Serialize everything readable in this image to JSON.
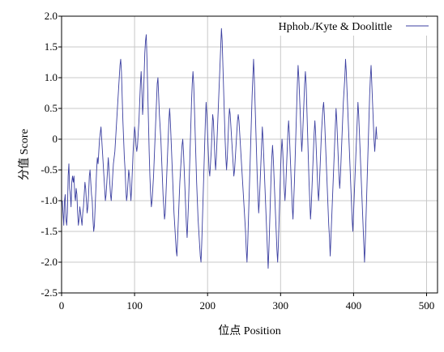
{
  "chart_data": {
    "type": "line",
    "title": "",
    "xlabel": "位点 Position",
    "ylabel": "分值 Score",
    "xlim": [
      0,
      515
    ],
    "ylim": [
      -2.5,
      2.0
    ],
    "xticks": [
      0,
      100,
      200,
      300,
      400,
      500
    ],
    "xtick_labels": [
      "0",
      "100",
      "200",
      "300",
      "400",
      "500"
    ],
    "yticks": [
      -2.5,
      -2.0,
      -1.5,
      -1.0,
      -0.5,
      0,
      0.5,
      1.0,
      1.5,
      2.0
    ],
    "ytick_labels": [
      "-2.5",
      "-2.0",
      "-1.5",
      "-1.0",
      "-0.5",
      "0",
      "0.5",
      "1.0",
      "1.5",
      "2.0"
    ],
    "grid": true,
    "legend_position": "top-right",
    "series": [
      {
        "name": "Hphob./Kyte & Doolittle",
        "color": "#3b3fa0",
        "x_start": 1,
        "x_step": 1,
        "values": [
          -1.0,
          -1.2,
          -1.4,
          -1.0,
          -0.9,
          -1.3,
          -1.4,
          -1.2,
          -0.6,
          -0.4,
          -0.8,
          -0.9,
          -1.1,
          -0.7,
          -0.6,
          -0.7,
          -0.6,
          -0.9,
          -1.0,
          -0.8,
          -0.9,
          -1.2,
          -1.4,
          -1.3,
          -1.1,
          -1.2,
          -1.3,
          -1.4,
          -1.2,
          -1.1,
          -0.9,
          -0.7,
          -0.8,
          -1.0,
          -1.2,
          -1.1,
          -0.9,
          -0.6,
          -0.5,
          -0.7,
          -0.9,
          -1.0,
          -1.3,
          -1.5,
          -1.4,
          -1.1,
          -0.8,
          -0.5,
          -0.3,
          -0.4,
          -0.2,
          0.0,
          0.1,
          0.2,
          0.0,
          -0.2,
          -0.4,
          -0.6,
          -0.8,
          -1.0,
          -0.9,
          -0.7,
          -0.5,
          -0.3,
          -0.5,
          -0.7,
          -0.9,
          -1.0,
          -0.8,
          -0.6,
          -0.4,
          -0.3,
          -0.2,
          0.0,
          0.2,
          0.4,
          0.6,
          0.8,
          1.0,
          1.2,
          1.3,
          1.1,
          0.7,
          0.3,
          0.0,
          -0.3,
          -0.5,
          -0.8,
          -1.0,
          -0.9,
          -0.7,
          -0.5,
          -0.6,
          -0.8,
          -1.0,
          -0.8,
          -0.5,
          -0.2,
          0.0,
          0.2,
          0.1,
          -0.1,
          -0.2,
          -0.1,
          0.1,
          0.3,
          0.6,
          0.9,
          1.1,
          0.8,
          0.4,
          0.6,
          1.0,
          1.4,
          1.6,
          1.7,
          1.3,
          0.8,
          0.3,
          -0.2,
          -0.6,
          -0.9,
          -1.1,
          -1.0,
          -0.8,
          -0.6,
          -0.3,
          0.0,
          0.3,
          0.6,
          0.9,
          1.0,
          0.7,
          0.4,
          0.2,
          0.0,
          -0.3,
          -0.6,
          -0.9,
          -1.1,
          -1.3,
          -1.2,
          -0.9,
          -0.6,
          -0.3,
          0.0,
          0.3,
          0.5,
          0.3,
          0.0,
          -0.3,
          -0.6,
          -0.9,
          -1.2,
          -1.4,
          -1.6,
          -1.8,
          -1.9,
          -1.6,
          -1.3,
          -1.0,
          -0.7,
          -0.5,
          -0.3,
          -0.1,
          0.0,
          -0.2,
          -0.5,
          -0.8,
          -1.1,
          -1.4,
          -1.6,
          -1.3,
          -1.0,
          -0.6,
          -0.2,
          0.2,
          0.6,
          0.9,
          1.1,
          0.9,
          0.5,
          0.1,
          -0.3,
          -0.7,
          -1.0,
          -1.3,
          -1.5,
          -1.7,
          -1.9,
          -2.0,
          -1.7,
          -1.3,
          -0.9,
          -0.5,
          -0.1,
          0.3,
          0.6,
          0.4,
          0.1,
          -0.2,
          -0.5,
          -0.6,
          -0.4,
          -0.2,
          0.1,
          0.4,
          0.3,
          0.0,
          -0.3,
          -0.5,
          -0.3,
          0.0,
          0.3,
          0.6,
          0.9,
          1.2,
          1.5,
          1.8,
          1.6,
          1.2,
          0.8,
          0.4,
          0.0,
          -0.3,
          -0.5,
          -0.3,
          0.0,
          0.3,
          0.5,
          0.4,
          0.2,
          0.0,
          -0.2,
          -0.4,
          -0.6,
          -0.5,
          -0.3,
          -0.1,
          0.1,
          0.3,
          0.4,
          0.3,
          0.1,
          -0.1,
          -0.3,
          -0.5,
          -0.7,
          -0.9,
          -1.1,
          -1.3,
          -1.5,
          -1.8,
          -2.0,
          -1.7,
          -1.3,
          -0.9,
          -0.5,
          -0.1,
          0.3,
          0.7,
          1.0,
          1.3,
          1.0,
          0.6,
          0.2,
          -0.2,
          -0.6,
          -0.9,
          -1.2,
          -1.0,
          -0.7,
          -0.4,
          -0.1,
          0.2,
          0.0,
          -0.3,
          -0.6,
          -0.9,
          -1.2,
          -1.5,
          -1.8,
          -2.1,
          -1.8,
          -1.4,
          -1.0,
          -0.6,
          -0.3,
          -0.1,
          -0.3,
          -0.6,
          -0.9,
          -1.2,
          -1.5,
          -1.8,
          -2.0,
          -1.7,
          -1.3,
          -0.9,
          -0.5,
          -0.2,
          0.0,
          -0.2,
          -0.5,
          -0.8,
          -1.0,
          -0.8,
          -0.5,
          -0.2,
          0.1,
          0.3,
          0.1,
          -0.2,
          -0.5,
          -0.8,
          -1.1,
          -1.3,
          -1.0,
          -0.7,
          -0.3,
          0.1,
          0.5,
          0.9,
          1.2,
          1.0,
          0.7,
          0.4,
          0.1,
          -0.2,
          0.0,
          0.3,
          0.6,
          0.9,
          1.1,
          0.9,
          0.5,
          0.1,
          -0.3,
          -0.7,
          -1.0,
          -1.3,
          -1.1,
          -0.8,
          -0.5,
          -0.2,
          0.1,
          0.3,
          0.1,
          -0.2,
          -0.5,
          -0.8,
          -1.0,
          -0.8,
          -0.5,
          -0.2,
          0.1,
          0.3,
          0.5,
          0.6,
          0.4,
          0.1,
          -0.2,
          -0.5,
          -0.8,
          -1.1,
          -1.4,
          -1.6,
          -1.9,
          -1.6,
          -1.3,
          -1.0,
          -0.7,
          -0.4,
          -0.1,
          0.2,
          0.5,
          0.3,
          0.0,
          -0.3,
          -0.6,
          -0.8,
          -0.6,
          -0.3,
          0.0,
          0.3,
          0.6,
          0.8,
          1.0,
          1.3,
          1.1,
          0.8,
          0.5,
          0.2,
          -0.1,
          -0.4,
          -0.7,
          -1.0,
          -1.3,
          -1.5,
          -1.2,
          -0.9,
          -0.6,
          -0.3,
          0.0,
          0.3,
          0.6,
          0.4,
          0.1,
          -0.2,
          -0.5,
          -0.8,
          -1.1,
          -1.4,
          -1.7,
          -2.0,
          -1.7,
          -1.3,
          -0.9,
          -0.5,
          -0.1,
          0.3,
          0.7,
          1.0,
          1.2,
          0.9,
          0.6,
          0.3,
          0.0,
          -0.2,
          0.0,
          0.2,
          0.0
        ]
      }
    ]
  }
}
